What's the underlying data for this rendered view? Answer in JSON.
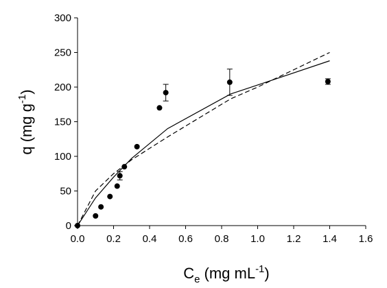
{
  "chart_data": {
    "type": "scatter",
    "xlabel": [
      "C",
      "e",
      "(mg mL",
      "-1",
      ")"
    ],
    "ylabel": [
      "q (mg g",
      "-1",
      ")"
    ],
    "xlim": [
      0,
      1.6
    ],
    "xticks": [
      {
        "value": 0,
        "label": "0.0"
      },
      {
        "value": 0.2,
        "label": "0.2"
      },
      {
        "value": 0.4,
        "label": "0.4"
      },
      {
        "value": 0.6,
        "label": "0.6"
      },
      {
        "value": 0.8,
        "label": "0.8"
      },
      {
        "value": 1.0,
        "label": "1.0"
      },
      {
        "value": 1.2,
        "label": "1.2"
      },
      {
        "value": 1.4,
        "label": "1.4"
      },
      {
        "value": 1.6,
        "label": "1.6"
      }
    ],
    "ylim": [
      0,
      300
    ],
    "yticks": [
      0,
      50,
      100,
      150,
      200,
      250,
      300
    ],
    "series": [
      {
        "type": "scatter",
        "color": "#000000",
        "x": [
          0,
          0.1,
          0.13,
          0.18,
          0.22,
          0.235,
          0.26,
          0.33,
          0.455,
          0.49,
          0.845,
          1.39
        ],
        "values": [
          0,
          14,
          27,
          42,
          57,
          72,
          85,
          114,
          170,
          192,
          207,
          208
        ],
        "errors": [
          null,
          null,
          null,
          null,
          null,
          6,
          null,
          null,
          null,
          12,
          19,
          4
        ]
      },
      {
        "type": "line",
        "color": "#000000",
        "dash": false,
        "x": [
          0,
          0.1,
          0.2,
          0.3,
          0.5,
          0.85,
          1.0,
          1.4
        ],
        "values": [
          0,
          40,
          70,
          97,
          140,
          190,
          203,
          238
        ]
      },
      {
        "type": "line",
        "color": "#000000",
        "dash": true,
        "x": [
          0,
          0.1,
          0.2,
          0.3,
          0.5,
          0.85,
          1.0,
          1.4
        ],
        "values": [
          0,
          50,
          75,
          95,
          128,
          183,
          200,
          250
        ]
      }
    ]
  }
}
